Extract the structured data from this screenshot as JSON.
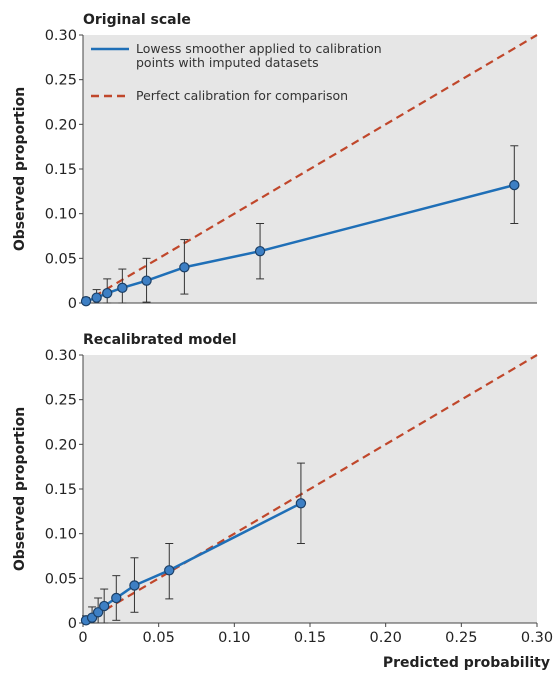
{
  "chart_data": [
    {
      "type": "line",
      "title": "Original scale",
      "xlabel": "",
      "ylabel": "Observed proportion",
      "xlim": [
        0,
        0.3
      ],
      "ylim": [
        0,
        0.3
      ],
      "grid": false,
      "legend_position": "top-left",
      "yticks": [
        "0",
        "0.05",
        "0.10",
        "0.15",
        "0.20",
        "0.25",
        "0.30"
      ],
      "series": [
        {
          "name": "Lowess smoother applied to calibration points with imputed datasets",
          "legend_lines": [
            "Lowess smoother applied to calibration",
            "points with imputed datasets"
          ],
          "style": "solid",
          "color": "#1f6fb7",
          "x": [
            0.002,
            0.009,
            0.016,
            0.026,
            0.042,
            0.067,
            0.117,
            0.285
          ],
          "y": [
            0.002,
            0.006,
            0.011,
            0.017,
            0.025,
            0.04,
            0.058,
            0.132
          ],
          "err_lo": [
            0.0,
            0.0,
            0.0,
            0.0,
            0.001,
            0.01,
            0.027,
            0.089
          ],
          "err_hi": [
            0.006,
            0.015,
            0.027,
            0.038,
            0.05,
            0.071,
            0.089,
            0.176
          ]
        },
        {
          "name": "Perfect calibration for comparison",
          "style": "dashed",
          "color": "#c0472b",
          "x": [
            0,
            0.3
          ],
          "y": [
            0,
            0.3
          ]
        }
      ]
    },
    {
      "type": "line",
      "title": "Recalibrated model",
      "xlabel": "Predicted probability",
      "ylabel": "Observed proportion",
      "xlim": [
        0,
        0.3
      ],
      "ylim": [
        0,
        0.3
      ],
      "grid": false,
      "xticks": [
        "0",
        "0.05",
        "0.10",
        "0.15",
        "0.20",
        "0.25",
        "0.30"
      ],
      "yticks": [
        "0",
        "0.05",
        "0.10",
        "0.15",
        "0.20",
        "0.25",
        "0.30"
      ],
      "series": [
        {
          "style": "solid",
          "color": "#1f6fb7",
          "x": [
            0.002,
            0.006,
            0.01,
            0.014,
            0.022,
            0.034,
            0.057,
            0.144
          ],
          "y": [
            0.003,
            0.006,
            0.012,
            0.019,
            0.028,
            0.042,
            0.059,
            0.134
          ],
          "err_lo": [
            0.0,
            0.0,
            0.0,
            0.0,
            0.003,
            0.012,
            0.027,
            0.089
          ],
          "err_hi": [
            0.008,
            0.018,
            0.028,
            0.038,
            0.053,
            0.073,
            0.089,
            0.179
          ]
        },
        {
          "style": "dashed",
          "color": "#c0472b",
          "x": [
            0,
            0.3
          ],
          "y": [
            0,
            0.3
          ]
        }
      ]
    }
  ]
}
